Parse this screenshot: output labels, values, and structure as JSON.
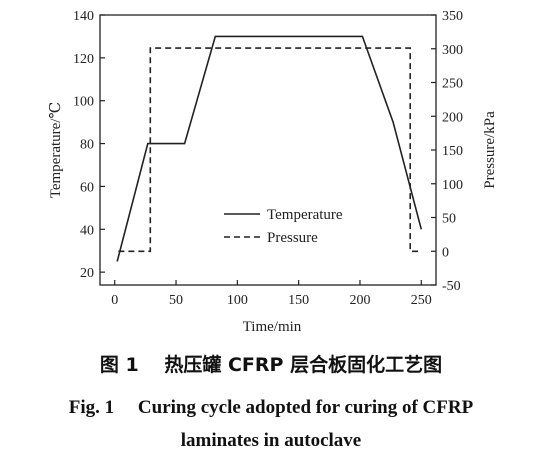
{
  "chart_data": {
    "type": "line",
    "xlabel": "Time/min",
    "ylabel_left": "Temperature/℃",
    "ylabel_right": "Pressure/kPa",
    "x_range": [
      -12,
      262
    ],
    "x_ticks": [
      0,
      50,
      100,
      150,
      200,
      250
    ],
    "y_left_range": [
      14,
      140
    ],
    "y_left_ticks": [
      20,
      40,
      60,
      80,
      100,
      120,
      140
    ],
    "y_right_range": [
      -50,
      350
    ],
    "y_right_ticks": [
      -50,
      0,
      50,
      100,
      150,
      200,
      250,
      300,
      350
    ],
    "grid": false,
    "legend_position": "center",
    "series": [
      {
        "name": "Temperature",
        "axis": "left",
        "style": "solid",
        "x": [
          2,
          27,
          57,
          82,
          202,
          227,
          250
        ],
        "y": [
          25,
          80,
          80,
          130,
          130,
          90,
          40
        ]
      },
      {
        "name": "Pressure",
        "axis": "right",
        "style": "dashed",
        "x": [
          3,
          27,
          29,
          29,
          239,
          241,
          241,
          250
        ],
        "y": [
          0,
          0,
          0,
          301,
          301,
          301,
          0,
          0
        ]
      }
    ]
  },
  "caption": {
    "chinese": "图 1　 热压罐 CFRP 层合板固化工艺图",
    "english_line1": "Fig. 1　 Curing cycle adopted for curing of CFRP",
    "english_line2": "laminates in autoclave"
  },
  "colors": {
    "line": "#222222",
    "axis": "#222222"
  }
}
